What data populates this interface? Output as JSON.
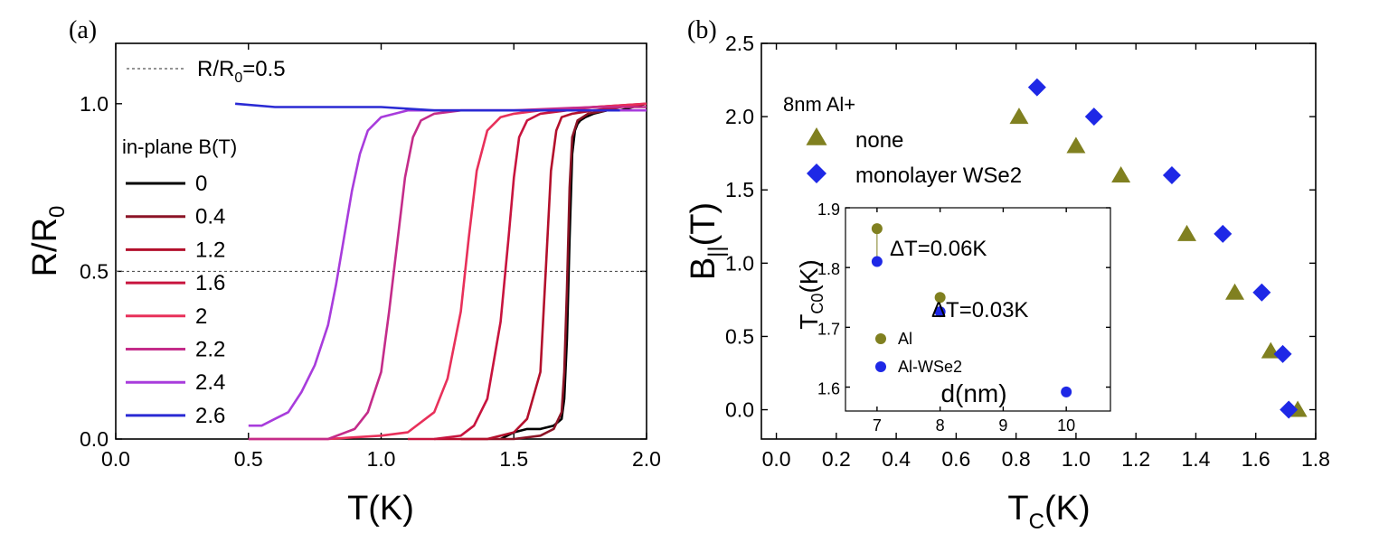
{
  "chart_data": [
    {
      "panel": "(a)",
      "type": "line",
      "xlabel": "T(K)",
      "ylabel_main": "R/R",
      "ylabel_sub": "0",
      "xlim": [
        0.0,
        2.0
      ],
      "ylim": [
        0.0,
        1.18
      ],
      "xticks": [
        "0.0",
        "0.5",
        "1.0",
        "1.5",
        "2.0"
      ],
      "yticks": [
        "0.0",
        "0.5",
        "1.0"
      ],
      "reference_line": {
        "y": 0.5,
        "label_main": "R/R",
        "label_sub": "0",
        "label_tail": "=0.5",
        "color": "#555555"
      },
      "legend_title": "in-plane B(T)",
      "series": [
        {
          "name": "0",
          "color": "#000000",
          "x": [
            1.45,
            1.5,
            1.55,
            1.6,
            1.65,
            1.68,
            1.69,
            1.7,
            1.71,
            1.72,
            1.73,
            1.74,
            1.75,
            1.77,
            1.8,
            1.85,
            1.9,
            1.95,
            2.0
          ],
          "y": [
            0.0,
            0.02,
            0.03,
            0.03,
            0.04,
            0.06,
            0.12,
            0.3,
            0.6,
            0.85,
            0.92,
            0.94,
            0.95,
            0.96,
            0.97,
            0.98,
            0.98,
            0.99,
            1.0
          ]
        },
        {
          "name": "0.4",
          "color": "#8c1426",
          "x": [
            1.3,
            1.4,
            1.5,
            1.6,
            1.65,
            1.68,
            1.69,
            1.7,
            1.71,
            1.72,
            1.74,
            1.78,
            1.85,
            1.9,
            2.0
          ],
          "y": [
            0.0,
            0.0,
            0.0,
            0.01,
            0.03,
            0.08,
            0.2,
            0.45,
            0.75,
            0.9,
            0.95,
            0.97,
            0.98,
            0.99,
            1.0
          ]
        },
        {
          "name": "1.2",
          "color": "#b3102c",
          "x": [
            1.2,
            1.3,
            1.4,
            1.5,
            1.55,
            1.6,
            1.62,
            1.64,
            1.66,
            1.68,
            1.72,
            1.8,
            1.9,
            2.0
          ],
          "y": [
            0.0,
            0.0,
            0.0,
            0.02,
            0.06,
            0.2,
            0.5,
            0.8,
            0.92,
            0.96,
            0.97,
            0.98,
            0.99,
            1.0
          ]
        },
        {
          "name": "1.6",
          "color": "#c8143e",
          "x": [
            1.1,
            1.2,
            1.3,
            1.35,
            1.4,
            1.45,
            1.48,
            1.5,
            1.52,
            1.55,
            1.6,
            1.7,
            1.8,
            2.0
          ],
          "y": [
            0.0,
            0.0,
            0.01,
            0.04,
            0.12,
            0.35,
            0.6,
            0.78,
            0.9,
            0.95,
            0.97,
            0.98,
            0.99,
            1.0
          ]
        },
        {
          "name": "2",
          "color": "#e8305a",
          "x": [
            0.5,
            0.8,
            1.0,
            1.1,
            1.2,
            1.25,
            1.3,
            1.33,
            1.36,
            1.4,
            1.45,
            1.5,
            1.6,
            1.8,
            2.0
          ],
          "y": [
            0.0,
            0.0,
            0.01,
            0.02,
            0.08,
            0.18,
            0.38,
            0.6,
            0.8,
            0.92,
            0.96,
            0.97,
            0.98,
            0.99,
            1.0
          ]
        },
        {
          "name": "2.2",
          "color": "#c42c8a",
          "x": [
            0.5,
            0.8,
            0.9,
            0.95,
            1.0,
            1.03,
            1.06,
            1.09,
            1.12,
            1.15,
            1.2,
            1.3,
            1.5,
            1.8,
            2.0
          ],
          "y": [
            0.0,
            0.0,
            0.03,
            0.08,
            0.2,
            0.38,
            0.58,
            0.78,
            0.9,
            0.95,
            0.97,
            0.98,
            0.98,
            0.99,
            0.99
          ]
        },
        {
          "name": "2.4",
          "color": "#a83cdc",
          "x": [
            0.5,
            0.55,
            0.6,
            0.65,
            0.7,
            0.75,
            0.8,
            0.83,
            0.86,
            0.89,
            0.92,
            0.95,
            1.0,
            1.1,
            1.3,
            1.6,
            2.0
          ],
          "y": [
            0.04,
            0.04,
            0.06,
            0.08,
            0.14,
            0.22,
            0.34,
            0.46,
            0.6,
            0.74,
            0.85,
            0.92,
            0.96,
            0.98,
            0.98,
            0.98,
            0.98
          ]
        },
        {
          "name": "2.6",
          "color": "#2a2ad4",
          "x": [
            0.45,
            0.6,
            0.8,
            1.0,
            1.2,
            1.4,
            1.6,
            1.8,
            1.9
          ],
          "y": [
            1.0,
            0.99,
            0.99,
            0.99,
            0.98,
            0.98,
            0.98,
            0.98,
            0.98
          ]
        }
      ]
    },
    {
      "panel": "(b)",
      "type": "scatter",
      "xlabel_main": "T",
      "xlabel_sub": "C",
      "xlabel_tail": "(K)",
      "ylabel_main": "B",
      "ylabel_sub": "||",
      "ylabel_tail": "(T)",
      "xlim": [
        -0.05,
        1.8
      ],
      "ylim": [
        -0.2,
        2.5
      ],
      "xticks": [
        "0.0",
        "0.2",
        "0.4",
        "0.6",
        "0.8",
        "1.0",
        "1.2",
        "1.4",
        "1.6",
        "1.8"
      ],
      "yticks": [
        "0.0",
        "0.5",
        "1.0",
        "1.5",
        "2.0",
        "2.5"
      ],
      "legend_title": "8nm Al+",
      "series": [
        {
          "name": "none",
          "marker": "triangle",
          "color": "#808020",
          "x": [
            0.81,
            1.0,
            1.15,
            1.37,
            1.53,
            1.65,
            1.74
          ],
          "y": [
            2.0,
            1.8,
            1.6,
            1.2,
            0.8,
            0.4,
            0.0
          ]
        },
        {
          "name": "monolayer WSe2",
          "marker": "diamond",
          "color": "#1e28e6",
          "x": [
            0.87,
            1.06,
            1.32,
            1.49,
            1.62,
            1.69,
            1.71
          ],
          "y": [
            2.2,
            2.0,
            1.6,
            1.2,
            0.8,
            0.38,
            0.0
          ]
        }
      ],
      "inset": {
        "type": "scatter",
        "xlabel": "d(nm)",
        "ylabel_main": "T",
        "ylabel_sub": "C0",
        "ylabel_tail": "(K)",
        "xlim": [
          6.5,
          10.7
        ],
        "ylim": [
          1.56,
          1.9
        ],
        "xticks": [
          "7",
          "8",
          "9",
          "10"
        ],
        "yticks": [
          "1.6",
          "1.7",
          "1.8",
          "1.9"
        ],
        "series": [
          {
            "name": "Al",
            "color": "#808020",
            "x": [
              7,
              8
            ],
            "y": [
              1.865,
              1.75
            ]
          },
          {
            "name": "Al-WSe2",
            "color": "#1e28e6",
            "x": [
              7,
              8,
              10
            ],
            "y": [
              1.81,
              1.726,
              1.592
            ]
          }
        ],
        "annotations": [
          "ΔT=0.06K",
          "ΔT=0.03K"
        ]
      }
    }
  ]
}
